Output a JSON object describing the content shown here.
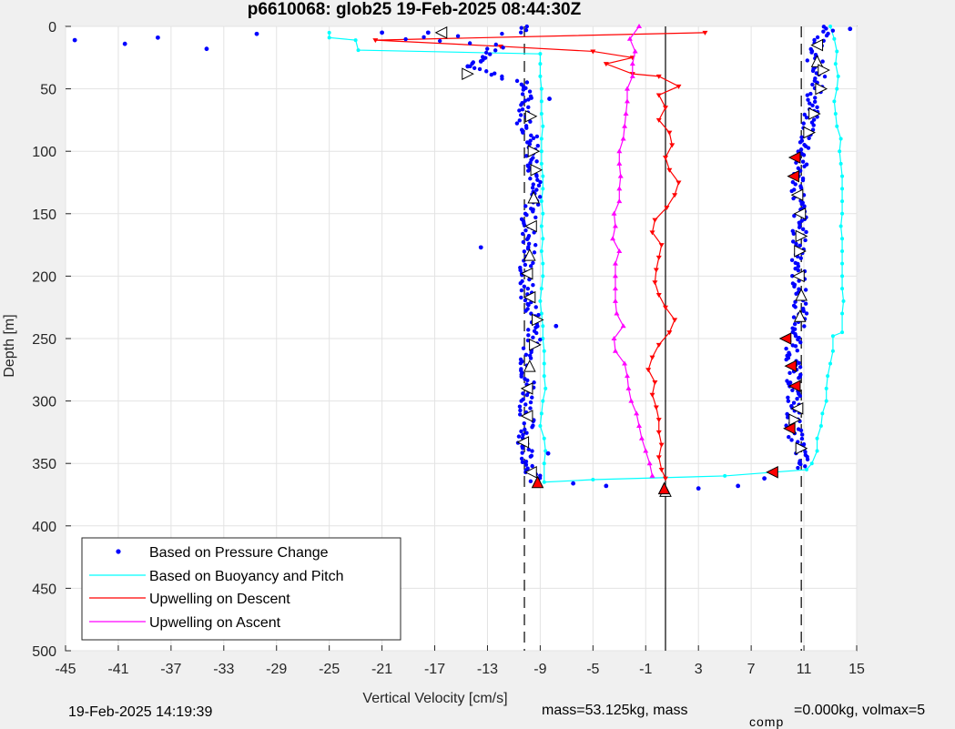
{
  "chart_data": {
    "type": "scatter",
    "title": "p6610068: glob25 19-Feb-2025 08:44:30Z",
    "xlabel": "Vertical Velocity [cm/s]",
    "ylabel": "Depth [m]",
    "xlim": [
      -45,
      15
    ],
    "ylim": [
      0,
      500
    ],
    "y_reversed": true,
    "grid": true,
    "xticks": [
      "-45",
      "-41",
      "-37",
      "-33",
      "-29",
      "-25",
      "-21",
      "-17",
      "-13",
      "-9",
      "-5",
      "-1",
      "3",
      "7",
      "11",
      "15"
    ],
    "yticks": [
      "0",
      "50",
      "100",
      "150",
      "200",
      "250",
      "300",
      "350",
      "400",
      "450",
      "500"
    ],
    "legend_position": "bottom-left",
    "reference_lines": {
      "dashed_x": [
        -10.2,
        10.8
      ],
      "solid_x": [
        0.5
      ]
    },
    "series": [
      {
        "name": "Based on Pressure Change",
        "color": "#0000ff",
        "style": "dots",
        "descent_center": [
          [
            0,
            -10
          ],
          [
            5,
            -10
          ],
          [
            10,
            -20
          ],
          [
            15,
            -12
          ],
          [
            20,
            -13
          ],
          [
            25,
            -13
          ],
          [
            30,
            -14
          ],
          [
            35,
            -13.5
          ],
          [
            40,
            -12
          ],
          [
            45,
            -10.5
          ],
          [
            50,
            -10
          ],
          [
            60,
            -10.2
          ],
          [
            70,
            -10
          ],
          [
            80,
            -10.3
          ],
          [
            90,
            -9.5
          ],
          [
            100,
            -9.5
          ],
          [
            110,
            -9.5
          ],
          [
            120,
            -9.3
          ],
          [
            130,
            -9.6
          ],
          [
            140,
            -9.5
          ],
          [
            150,
            -9.8
          ],
          [
            160,
            -10
          ],
          [
            170,
            -9.8
          ],
          [
            180,
            -9.8
          ],
          [
            190,
            -10
          ],
          [
            200,
            -10.2
          ],
          [
            210,
            -10
          ],
          [
            220,
            -10
          ],
          [
            230,
            -9.5
          ],
          [
            240,
            -9.3
          ],
          [
            250,
            -9.5
          ],
          [
            260,
            -9.8
          ],
          [
            270,
            -10
          ],
          [
            280,
            -10
          ],
          [
            290,
            -9.8
          ],
          [
            300,
            -10
          ],
          [
            310,
            -10
          ],
          [
            320,
            -10
          ],
          [
            330,
            -10.2
          ],
          [
            340,
            -10
          ],
          [
            350,
            -9.8
          ],
          [
            360,
            -9.5
          ],
          [
            365,
            -9.3
          ]
        ],
        "ascent_center": [
          [
            0,
            12.5
          ],
          [
            5,
            12.8
          ],
          [
            10,
            12
          ],
          [
            15,
            12
          ],
          [
            20,
            11.5
          ],
          [
            25,
            11.6
          ],
          [
            30,
            12
          ],
          [
            35,
            12
          ],
          [
            40,
            12.4
          ],
          [
            45,
            12.2
          ],
          [
            50,
            11.9
          ],
          [
            60,
            11.6
          ],
          [
            70,
            11.5
          ],
          [
            80,
            11.4
          ],
          [
            90,
            11.2
          ],
          [
            100,
            11
          ],
          [
            110,
            10.7
          ],
          [
            120,
            10.6
          ],
          [
            130,
            10.6
          ],
          [
            140,
            10.6
          ],
          [
            150,
            10.7
          ],
          [
            160,
            10.7
          ],
          [
            170,
            10.6
          ],
          [
            180,
            10.7
          ],
          [
            190,
            10.6
          ],
          [
            200,
            10.6
          ],
          [
            210,
            10.6
          ],
          [
            220,
            10.8
          ],
          [
            230,
            10.7
          ],
          [
            240,
            10.6
          ],
          [
            250,
            10.2
          ],
          [
            260,
            10.2
          ],
          [
            270,
            10.2
          ],
          [
            280,
            10.2
          ],
          [
            290,
            10.3
          ],
          [
            300,
            10.2
          ],
          [
            310,
            10.2
          ],
          [
            320,
            10.2
          ],
          [
            330,
            10.4
          ],
          [
            340,
            10.8
          ],
          [
            350,
            10.8
          ],
          [
            355,
            10.5
          ]
        ],
        "outliers": [
          [
            -44.3,
            11
          ],
          [
            -40.5,
            14
          ],
          [
            -38,
            9
          ],
          [
            -34.3,
            18
          ],
          [
            -30.5,
            6
          ],
          [
            -21,
            5
          ],
          [
            -17.5,
            5
          ],
          [
            -13.5,
            28
          ],
          [
            -14.5,
            32
          ],
          [
            -8.3,
            58
          ],
          [
            -13.5,
            177
          ],
          [
            -7.8,
            240
          ],
          [
            -8.4,
            342
          ],
          [
            14.5,
            2
          ],
          [
            -6.5,
            366
          ],
          [
            -4,
            368
          ],
          [
            3,
            370
          ],
          [
            6,
            368
          ],
          [
            8,
            362
          ]
        ]
      },
      {
        "name": "Based on Buoyancy and Pitch",
        "color": "#00ffff",
        "style": "line-dots",
        "points": [
          [
            13,
            0
          ],
          [
            13.3,
            10
          ],
          [
            13.5,
            20
          ],
          [
            13.4,
            30
          ],
          [
            13.6,
            40
          ],
          [
            13.5,
            50
          ],
          [
            13.3,
            60
          ],
          [
            13.4,
            70
          ],
          [
            13.5,
            80
          ],
          [
            13.8,
            90
          ],
          [
            13.7,
            100
          ],
          [
            13.8,
            110
          ],
          [
            13.9,
            120
          ],
          [
            13.9,
            130
          ],
          [
            13.9,
            140
          ],
          [
            13.9,
            150
          ],
          [
            13.8,
            160
          ],
          [
            13.9,
            170
          ],
          [
            13.9,
            180
          ],
          [
            13.9,
            190
          ],
          [
            13.9,
            200
          ],
          [
            13.9,
            210
          ],
          [
            14.0,
            220
          ],
          [
            13.9,
            230
          ],
          [
            13.9,
            245
          ],
          [
            13.2,
            248
          ],
          [
            13.2,
            260
          ],
          [
            13,
            270
          ],
          [
            12.8,
            280
          ],
          [
            12.7,
            290
          ],
          [
            12.7,
            300
          ],
          [
            12.4,
            310
          ],
          [
            12.3,
            320
          ],
          [
            12.0,
            330
          ],
          [
            12.0,
            340
          ],
          [
            11.6,
            350
          ],
          [
            11.2,
            355
          ],
          [
            5,
            360
          ],
          [
            -5,
            363
          ],
          [
            -8.7,
            365
          ],
          [
            -8.7,
            350
          ],
          [
            -8.6,
            340
          ],
          [
            -8.7,
            330
          ],
          [
            -9.0,
            320
          ],
          [
            -8.9,
            310
          ],
          [
            -8.8,
            300
          ],
          [
            -8.6,
            290
          ],
          [
            -8.7,
            280
          ],
          [
            -8.7,
            270
          ],
          [
            -8.7,
            260
          ],
          [
            -8.8,
            250
          ],
          [
            -8.8,
            240
          ],
          [
            -8.9,
            230
          ],
          [
            -9.0,
            220
          ],
          [
            -8.9,
            210
          ],
          [
            -8.8,
            200
          ],
          [
            -8.8,
            190
          ],
          [
            -8.9,
            180
          ],
          [
            -8.8,
            170
          ],
          [
            -8.9,
            160
          ],
          [
            -8.8,
            150
          ],
          [
            -8.9,
            140
          ],
          [
            -8.8,
            130
          ],
          [
            -8.8,
            120
          ],
          [
            -8.9,
            110
          ],
          [
            -8.9,
            100
          ],
          [
            -8.9,
            90
          ],
          [
            -8.8,
            80
          ],
          [
            -8.9,
            70
          ],
          [
            -8.9,
            60
          ],
          [
            -8.9,
            50
          ],
          [
            -9.0,
            40
          ],
          [
            -9.0,
            30
          ],
          [
            -9.0,
            22
          ],
          [
            -22.8,
            19
          ],
          [
            -23,
            11
          ],
          [
            -25,
            9
          ],
          [
            -25,
            5
          ]
        ]
      },
      {
        "name": "Upwelling on Descent",
        "color": "#ff0000",
        "style": "line-triangles-down",
        "points": [
          [
            3.5,
            5
          ],
          [
            -21.5,
            11
          ],
          [
            -12,
            16
          ],
          [
            -5,
            20
          ],
          [
            -2,
            25
          ],
          [
            -4,
            30
          ],
          [
            -2,
            38
          ],
          [
            0,
            40
          ],
          [
            1.5,
            48
          ],
          [
            0,
            55
          ],
          [
            0.5,
            65
          ],
          [
            0,
            75
          ],
          [
            0.8,
            85
          ],
          [
            1.0,
            95
          ],
          [
            0.5,
            105
          ],
          [
            0.8,
            115
          ],
          [
            1.5,
            125
          ],
          [
            1.2,
            135
          ],
          [
            0.6,
            145
          ],
          [
            -0.3,
            155
          ],
          [
            -0.5,
            165
          ],
          [
            0.2,
            175
          ],
          [
            0,
            185
          ],
          [
            -0.2,
            195
          ],
          [
            -0.3,
            205
          ],
          [
            0,
            215
          ],
          [
            0.5,
            225
          ],
          [
            1.2,
            235
          ],
          [
            0.8,
            245
          ],
          [
            0,
            255
          ],
          [
            -0.5,
            265
          ],
          [
            -0.8,
            275
          ],
          [
            -0.3,
            285
          ],
          [
            -0.5,
            295
          ],
          [
            -0.2,
            305
          ],
          [
            0,
            315
          ],
          [
            0,
            325
          ],
          [
            0.2,
            335
          ],
          [
            0,
            345
          ],
          [
            0.2,
            355
          ],
          [
            0.5,
            362
          ]
        ]
      },
      {
        "name": "Upwelling on Ascent",
        "color": "#ff00ff",
        "style": "line-triangles-up",
        "points": [
          [
            -1.5,
            0
          ],
          [
            -2.2,
            10
          ],
          [
            -1.8,
            20
          ],
          [
            -2,
            30
          ],
          [
            -2,
            40
          ],
          [
            -2.4,
            50
          ],
          [
            -2.4,
            60
          ],
          [
            -2.5,
            70
          ],
          [
            -2.6,
            80
          ],
          [
            -2.7,
            90
          ],
          [
            -3,
            100
          ],
          [
            -3,
            110
          ],
          [
            -2.9,
            120
          ],
          [
            -3,
            130
          ],
          [
            -3,
            140
          ],
          [
            -3.4,
            150
          ],
          [
            -3.3,
            160
          ],
          [
            -3.5,
            170
          ],
          [
            -3,
            180
          ],
          [
            -3.3,
            190
          ],
          [
            -3.3,
            200
          ],
          [
            -3.3,
            210
          ],
          [
            -3.3,
            220
          ],
          [
            -3.2,
            230
          ],
          [
            -2.7,
            240
          ],
          [
            -3.4,
            250
          ],
          [
            -3.3,
            260
          ],
          [
            -2.6,
            270
          ],
          [
            -2.4,
            280
          ],
          [
            -2.3,
            290
          ],
          [
            -2.1,
            300
          ],
          [
            -1.7,
            310
          ],
          [
            -1.5,
            320
          ],
          [
            -1.3,
            330
          ],
          [
            -1.0,
            340
          ],
          [
            -0.7,
            350
          ],
          [
            -0.5,
            360
          ]
        ]
      }
    ],
    "markers": {
      "open_triangles": [
        [
          -16.5,
          5,
          "left"
        ],
        [
          -14.5,
          38,
          "right"
        ],
        [
          -9.7,
          72,
          "right"
        ],
        [
          -9.5,
          100,
          "right"
        ],
        [
          -9.3,
          115,
          "right"
        ],
        [
          -9.5,
          137,
          "up"
        ],
        [
          -9.7,
          160,
          "left"
        ],
        [
          -9.8,
          183,
          "up"
        ],
        [
          -10.0,
          198,
          "left"
        ],
        [
          -9.8,
          217,
          "left"
        ],
        [
          -9.2,
          235,
          "right"
        ],
        [
          -9.4,
          255,
          "right"
        ],
        [
          -9.8,
          272,
          "up"
        ],
        [
          -10.0,
          290,
          "left"
        ],
        [
          -10.0,
          312,
          "left"
        ],
        [
          -10.3,
          333,
          "left"
        ],
        [
          -9.7,
          357,
          "left"
        ],
        [
          12.0,
          15,
          "left"
        ],
        [
          12.0,
          28,
          "up"
        ],
        [
          12.5,
          35,
          "right"
        ],
        [
          12.3,
          50,
          "right"
        ],
        [
          11.8,
          70,
          "right"
        ],
        [
          11.4,
          85,
          "right"
        ],
        [
          10.5,
          135,
          "left"
        ],
        [
          10.7,
          150,
          "left"
        ],
        [
          10.8,
          168,
          "right"
        ],
        [
          10.7,
          180,
          "right"
        ],
        [
          10.6,
          200,
          "left"
        ],
        [
          10.8,
          215,
          "up"
        ],
        [
          10.7,
          232,
          "up"
        ],
        [
          10.5,
          306,
          "left"
        ],
        [
          10.3,
          315,
          "right"
        ],
        [
          10.8,
          338,
          "right"
        ],
        [
          0.5,
          372,
          "up"
        ]
      ],
      "filled_triangles": [
        [
          10.3,
          105,
          "left"
        ],
        [
          10.2,
          120,
          "left"
        ],
        [
          9.6,
          250,
          "left"
        ],
        [
          10.0,
          272,
          "left"
        ],
        [
          10.3,
          288,
          "left"
        ],
        [
          9.9,
          322,
          "left"
        ],
        [
          8.6,
          357,
          "left"
        ],
        [
          -9.2,
          365,
          "up"
        ],
        [
          0.4,
          370,
          "up"
        ]
      ]
    }
  },
  "footer": {
    "date": "19-Feb-2025 14:19:39",
    "mass": "mass=53.125kg, mass",
    "sub": "comp",
    "rest": "=0.000kg, volmax=5"
  }
}
